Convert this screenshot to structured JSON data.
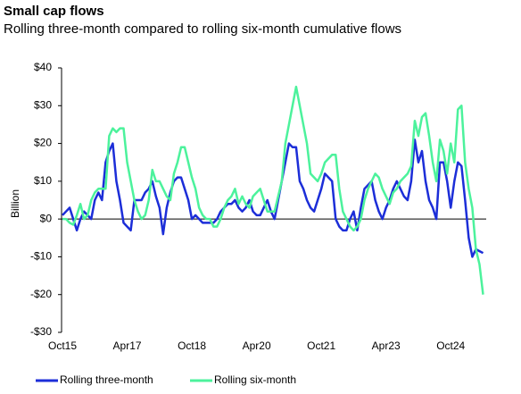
{
  "chart_data": {
    "type": "line",
    "title": "Small cap flows",
    "subtitle": "Rolling three-month compared to rolling six-month cumulative flows",
    "y_axis_label": "Billion",
    "categories": [
      "Oct15",
      null,
      null,
      null,
      null,
      null,
      null,
      null,
      null,
      null,
      null,
      null,
      null,
      null,
      null,
      null,
      null,
      null,
      "Apr17",
      null,
      null,
      null,
      null,
      null,
      null,
      null,
      null,
      null,
      null,
      null,
      null,
      null,
      null,
      null,
      null,
      null,
      "Oct18",
      null,
      null,
      null,
      null,
      null,
      null,
      null,
      null,
      null,
      null,
      null,
      null,
      null,
      null,
      null,
      null,
      null,
      "Apr20",
      null,
      null,
      null,
      null,
      null,
      null,
      null,
      null,
      null,
      null,
      null,
      null,
      null,
      null,
      null,
      null,
      null,
      "Oct21",
      null,
      null,
      null,
      null,
      null,
      null,
      null,
      null,
      null,
      null,
      null,
      null,
      null,
      null,
      null,
      null,
      null,
      "Apr23",
      null,
      null,
      null,
      null,
      null,
      null,
      null,
      null,
      null,
      null,
      null,
      null,
      null,
      null,
      null,
      null,
      null,
      "Oct24",
      null,
      null,
      null,
      null,
      null,
      null,
      null,
      null,
      null
    ],
    "series": [
      {
        "name": "Rolling three-month",
        "color": "#1c2ed8",
        "values": [
          1,
          2,
          3,
          0,
          -3,
          0,
          2,
          1,
          0,
          5,
          7,
          5,
          15,
          18,
          20,
          10,
          5,
          -1,
          -2,
          -3,
          5,
          5,
          5,
          7,
          8,
          10,
          6,
          3,
          -4,
          3,
          7,
          10,
          11,
          11,
          8,
          5,
          0,
          1,
          0,
          -1,
          -1,
          -1,
          -1,
          0,
          2,
          3,
          4,
          4,
          5,
          3,
          2,
          3,
          5,
          2,
          1,
          1,
          3,
          5,
          2,
          0,
          5,
          10,
          15,
          20,
          19,
          19,
          10,
          8,
          5,
          3,
          2,
          5,
          8,
          12,
          11,
          10,
          0,
          -2,
          -3,
          -3,
          0,
          2,
          -3,
          3,
          8,
          9,
          10,
          5,
          2,
          0,
          3,
          5,
          8,
          10,
          8,
          6,
          5,
          10,
          21,
          15,
          18,
          10,
          5,
          3,
          0,
          15,
          15,
          10,
          3,
          10,
          15,
          14,
          5,
          -5,
          -10,
          -8,
          -8.5,
          -9
        ]
      },
      {
        "name": "Rolling six-month",
        "color": "#4cf29c",
        "values": [
          0,
          0,
          -1,
          -1.5,
          1,
          4,
          0,
          1,
          5,
          7,
          8,
          8,
          8,
          22,
          24,
          23,
          24,
          24,
          15,
          10,
          5,
          2,
          0,
          1,
          5,
          13,
          10,
          10,
          8,
          6,
          5,
          12,
          15,
          19,
          19,
          15,
          11,
          8,
          3,
          1,
          0,
          0,
          -2,
          -2,
          0,
          3,
          5,
          6,
          8,
          4,
          6,
          4,
          3,
          6,
          7,
          8,
          5,
          2,
          2,
          2,
          6,
          10,
          20,
          25,
          30,
          35,
          30,
          25,
          20,
          12,
          11,
          10,
          12,
          15,
          16,
          17,
          17,
          8,
          2,
          0,
          -2,
          -3,
          -2,
          0,
          5,
          8,
          10,
          12,
          11,
          8,
          6,
          4,
          7,
          8,
          10,
          11,
          12,
          14,
          26,
          22,
          27,
          28,
          22,
          15,
          10,
          21,
          18,
          12,
          20,
          15,
          29,
          30,
          15,
          8,
          3,
          -8,
          -12,
          -20
        ]
      }
    ],
    "ylim": [
      -30,
      40
    ],
    "yticks": [
      {
        "value": 40,
        "label": "$40"
      },
      {
        "value": 30,
        "label": "$30"
      },
      {
        "value": 20,
        "label": "$20"
      },
      {
        "value": 10,
        "label": "$10"
      },
      {
        "value": 0,
        "label": "$0"
      },
      {
        "value": -10,
        "label": "-$10"
      },
      {
        "value": -20,
        "label": "-$20"
      },
      {
        "value": -30,
        "label": "-$30"
      }
    ],
    "grid": false
  }
}
